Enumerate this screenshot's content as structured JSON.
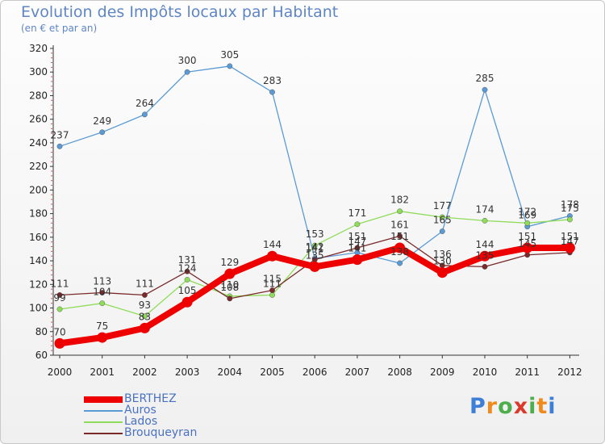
{
  "title": "Evolution des Impôts locaux par Habitant",
  "subtitle": "(en € et par an)",
  "logo": {
    "text": "Proxiti",
    "letter_colors": [
      "#3d7fd6",
      "#f08a1c",
      "#4cae4c",
      "#d93a2b",
      "#4cae4c",
      "#f08a1c",
      "#3d7fd6"
    ]
  },
  "chart_data": {
    "type": "line",
    "title": "Evolution des Impôts locaux par Habitant",
    "subtitle": "(en € et par an)",
    "xlabel": "",
    "ylabel": "",
    "x": [
      "2000",
      "2001",
      "2002",
      "2003",
      "2004",
      "2005",
      "2006",
      "2007",
      "2008",
      "2009",
      "2010",
      "2011",
      "2012"
    ],
    "ylim": [
      60,
      320
    ],
    "yticks": [
      60,
      80,
      100,
      120,
      140,
      160,
      180,
      200,
      220,
      240,
      260,
      280,
      300,
      320
    ],
    "grid": false,
    "legend_position": "bottom-left",
    "series": [
      {
        "name": "BERTHEZ",
        "color": "#ee0000",
        "values": [
          70,
          75,
          83,
          105,
          129,
          144,
          135,
          141,
          151,
          130,
          144,
          151,
          151
        ]
      },
      {
        "name": "Auros",
        "color": "#5b9bd5",
        "values": [
          237,
          249,
          264,
          300,
          305,
          283,
          142,
          147,
          138,
          165,
          285,
          169,
          178
        ]
      },
      {
        "name": "Lados",
        "color": "#8fdc5a",
        "values": [
          99,
          104,
          93,
          124,
          110,
          111,
          153,
          171,
          182,
          177,
          174,
          172,
          175
        ]
      },
      {
        "name": "Brouqueyran",
        "color": "#7a2a2a",
        "values": [
          111,
          113,
          111,
          131,
          108,
          115,
          141,
          151,
          161,
          136,
          135,
          145,
          147
        ]
      }
    ]
  }
}
